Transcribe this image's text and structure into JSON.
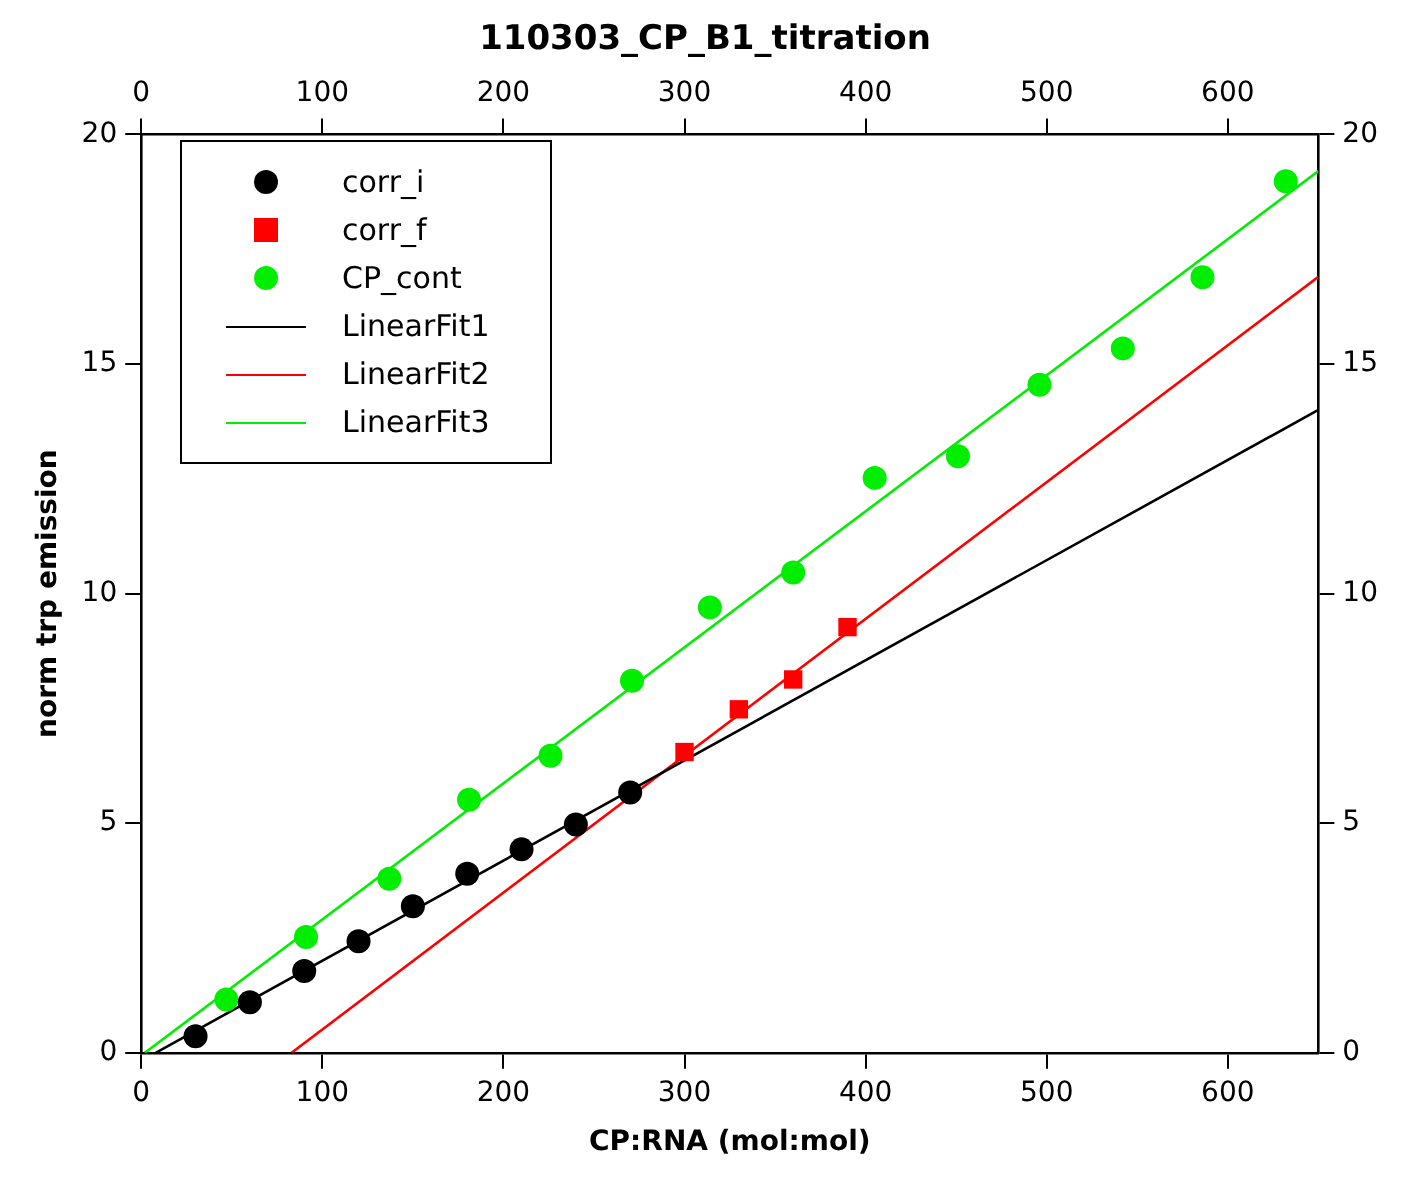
{
  "chart_data": {
    "type": "scatter",
    "title": "110303_CP_B1_titration",
    "xlabel": "CP:RNA (mol:mol)",
    "ylabel": "norm trp emission",
    "xlim": [
      0,
      650
    ],
    "xticks": [
      0,
      100,
      200,
      300,
      400,
      500,
      600
    ],
    "x2lim": [
      0,
      650
    ],
    "x2ticks": [
      0,
      100,
      200,
      300,
      400,
      500,
      600
    ],
    "ylim": [
      0,
      20
    ],
    "yticks": [
      0,
      5,
      10,
      15,
      20
    ],
    "y2lim": [
      0,
      20
    ],
    "y2ticks": [
      0,
      5,
      10,
      15,
      20
    ],
    "grid": false,
    "legend": "top left",
    "series": [
      {
        "name": "corr_i",
        "type": "scatter",
        "color": "#000000",
        "marker": "circle",
        "x": [
          30,
          60,
          90,
          120,
          150,
          180,
          210,
          240,
          270
        ],
        "values": [
          0.36,
          1.1,
          1.78,
          2.43,
          3.19,
          3.9,
          4.43,
          4.97,
          5.67
        ]
      },
      {
        "name": "corr_f",
        "type": "scatter",
        "color": "#ff0000",
        "marker": "square",
        "x": [
          300,
          330,
          360,
          390
        ],
        "values": [
          6.55,
          7.48,
          8.13,
          9.27
        ]
      },
      {
        "name": "CP_cont",
        "type": "scatter",
        "color": "#00ee00",
        "marker": "circle",
        "x": [
          47,
          91,
          137,
          181,
          226,
          271,
          314,
          360,
          405,
          451,
          496,
          542,
          586,
          632
        ],
        "values": [
          1.16,
          2.52,
          3.79,
          5.51,
          6.47,
          8.1,
          9.7,
          10.46,
          12.52,
          12.99,
          14.55,
          15.34,
          16.89,
          18.98
        ]
      },
      {
        "name": "LinearFit1",
        "type": "line",
        "color": "#000000",
        "marker": "none",
        "x": [
          8,
          650
        ],
        "values": [
          0,
          14.0
        ]
      },
      {
        "name": "LinearFit2",
        "type": "line",
        "color": "#ff0000",
        "marker": "none",
        "x": [
          83,
          650
        ],
        "values": [
          0,
          16.9
        ]
      },
      {
        "name": "LinearFit3",
        "type": "line",
        "color": "#00ee00",
        "marker": "none",
        "x": [
          2,
          650
        ],
        "values": [
          0,
          19.2
        ]
      }
    ]
  }
}
